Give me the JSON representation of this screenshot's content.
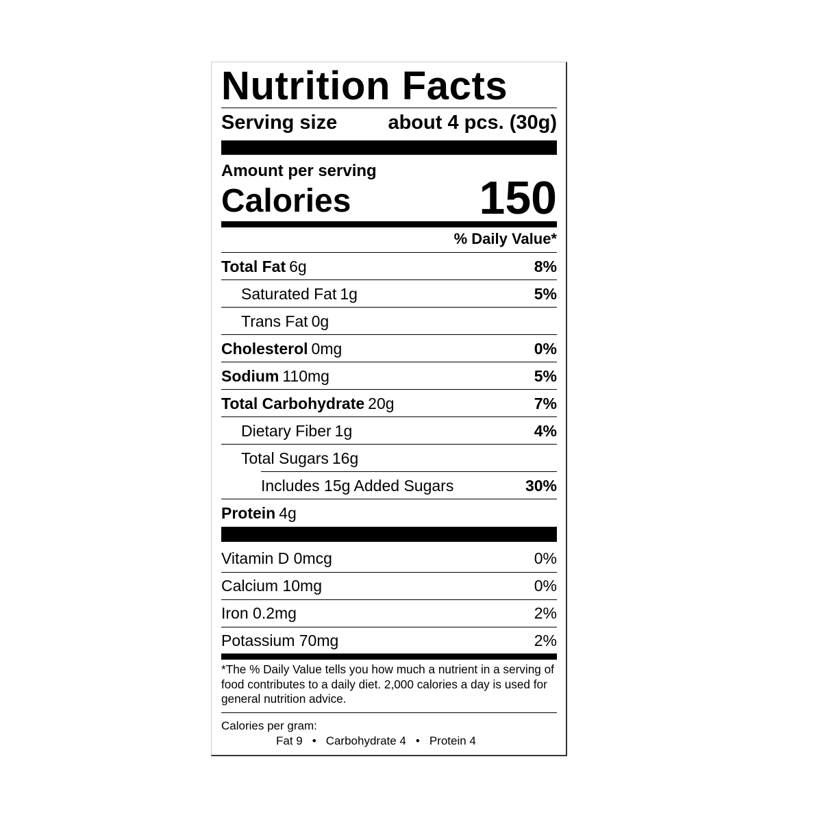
{
  "title": "Nutrition Facts",
  "serving": {
    "label": "Serving size",
    "value": "about 4 pcs. (30g)"
  },
  "amount_per_serving": "Amount per serving",
  "calories": {
    "label": "Calories",
    "value": "150"
  },
  "daily_value_header": "% Daily Value*",
  "nutrients": [
    {
      "name": "Total Fat",
      "amount": "6g",
      "dv": "8%"
    },
    {
      "name": "Saturated Fat",
      "amount": "1g",
      "dv": "5%"
    },
    {
      "name": "Trans Fat",
      "amount": "0g",
      "dv": ""
    },
    {
      "name": "Cholesterol",
      "amount": "0mg",
      "dv": "0%"
    },
    {
      "name": "Sodium",
      "amount": "110mg",
      "dv": "5%"
    },
    {
      "name": "Total Carbohydrate",
      "amount": "20g",
      "dv": "7%"
    },
    {
      "name": "Dietary Fiber",
      "amount": "1g",
      "dv": "4%"
    },
    {
      "name": "Total Sugars",
      "amount": "16g",
      "dv": ""
    },
    {
      "name": "Includes 15g Added Sugars",
      "amount": "",
      "dv": "30%"
    },
    {
      "name": "Protein",
      "amount": "4g",
      "dv": ""
    }
  ],
  "vitamins": [
    {
      "label": "Vitamin D 0mcg",
      "dv": "0%"
    },
    {
      "label": "Calcium 10mg",
      "dv": "0%"
    },
    {
      "label": "Iron 0.2mg",
      "dv": "2%"
    },
    {
      "label": "Potassium 70mg",
      "dv": "2%"
    }
  ],
  "footnote": "*The % Daily Value tells you how much a nutrient in a serving of food contributes to a daily diet. 2,000 calories a day is used for general nutrition advice.",
  "calories_per_gram": {
    "label": "Calories per gram:",
    "fat": "Fat 9",
    "carbohydrate": "Carbohydrate 4",
    "protein": "Protein 4",
    "separator": "•"
  }
}
